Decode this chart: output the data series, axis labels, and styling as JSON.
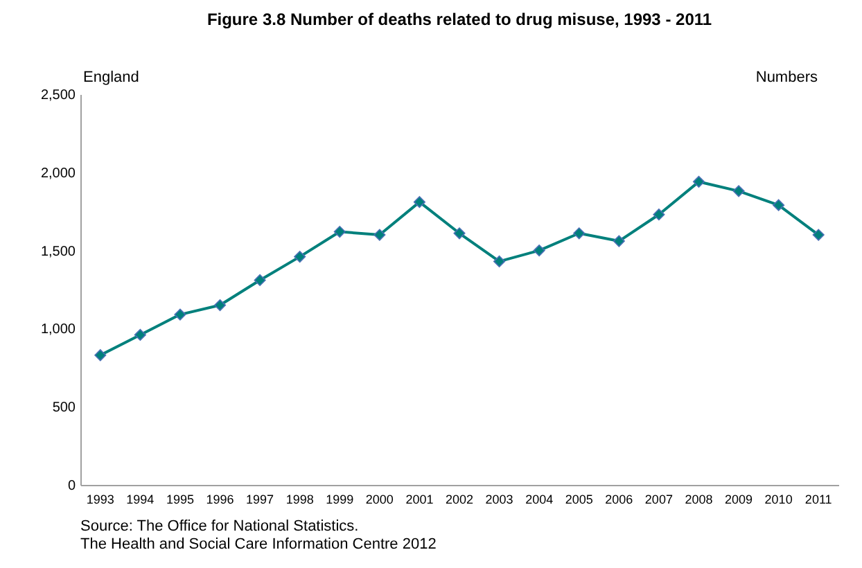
{
  "chart_data": {
    "type": "line",
    "title": "Figure 3.8  Number of deaths related to drug misuse, 1993 - 2011",
    "categories": [
      "1993",
      "1994",
      "1995",
      "1996",
      "1997",
      "1998",
      "1999",
      "2000",
      "2001",
      "2002",
      "2003",
      "2004",
      "2005",
      "2006",
      "2007",
      "2008",
      "2009",
      "2010",
      "2011"
    ],
    "series": [
      {
        "color": "#00807c",
        "values": [
          830,
          960,
          1090,
          1150,
          1310,
          1460,
          1620,
          1600,
          1810,
          1610,
          1430,
          1500,
          1610,
          1560,
          1730,
          1940,
          1880,
          1790,
          1600
        ]
      }
    ],
    "ylim": [
      0,
      2500
    ],
    "yticks": [
      0,
      500,
      {
        "value": 1000,
        "label": "1,000"
      },
      {
        "value": 1500,
        "label": "1,500"
      },
      {
        "value": 2000,
        "label": "2,000"
      },
      {
        "value": 2500,
        "label": "2,500"
      }
    ],
    "grid": false,
    "legend": false,
    "marker": "diamond",
    "line_style": "solid",
    "annotations": [
      "England",
      "Numbers",
      "Source: The Office for National Statistics.",
      "The Health and Social Care Information Centre 2012"
    ]
  }
}
